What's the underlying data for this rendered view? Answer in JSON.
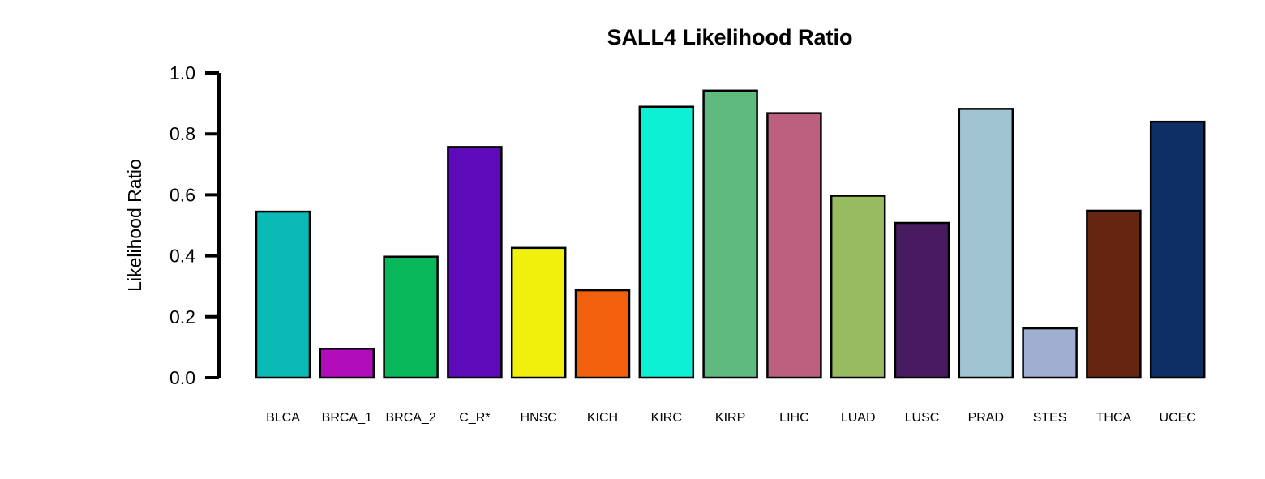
{
  "chart_data": {
    "type": "bar",
    "title": "SALL4 Likelihood Ratio",
    "xlabel": "",
    "ylabel": "Likelihood Ratio",
    "ylim": [
      0,
      1.0
    ],
    "y_ticks": [
      "0.0",
      "0.2",
      "0.4",
      "0.6",
      "0.8",
      "1.0"
    ],
    "grid": false,
    "legend": "none",
    "categories": [
      "BLCA",
      "BRCA_1",
      "BRCA_2",
      "C_R*",
      "HNSC",
      "KICH",
      "KIRC",
      "KIRP",
      "LIHC",
      "LUAD",
      "LUSC",
      "PRAD",
      "STES",
      "THCA",
      "UCEC"
    ],
    "values": [
      0.545,
      0.095,
      0.397,
      0.757,
      0.426,
      0.287,
      0.889,
      0.942,
      0.868,
      0.597,
      0.508,
      0.882,
      0.162,
      0.548,
      0.84
    ],
    "colors": [
      "#0ABAB5",
      "#B10DBA",
      "#08B85A",
      "#5C0ABA",
      "#F0F00C",
      "#F2600E",
      "#0EF0D3",
      "#5FBA80",
      "#BD6080",
      "#98BA60",
      "#481B60",
      "#A0C4D2",
      "#A0AED2",
      "#662510",
      "#0E2F64"
    ]
  }
}
